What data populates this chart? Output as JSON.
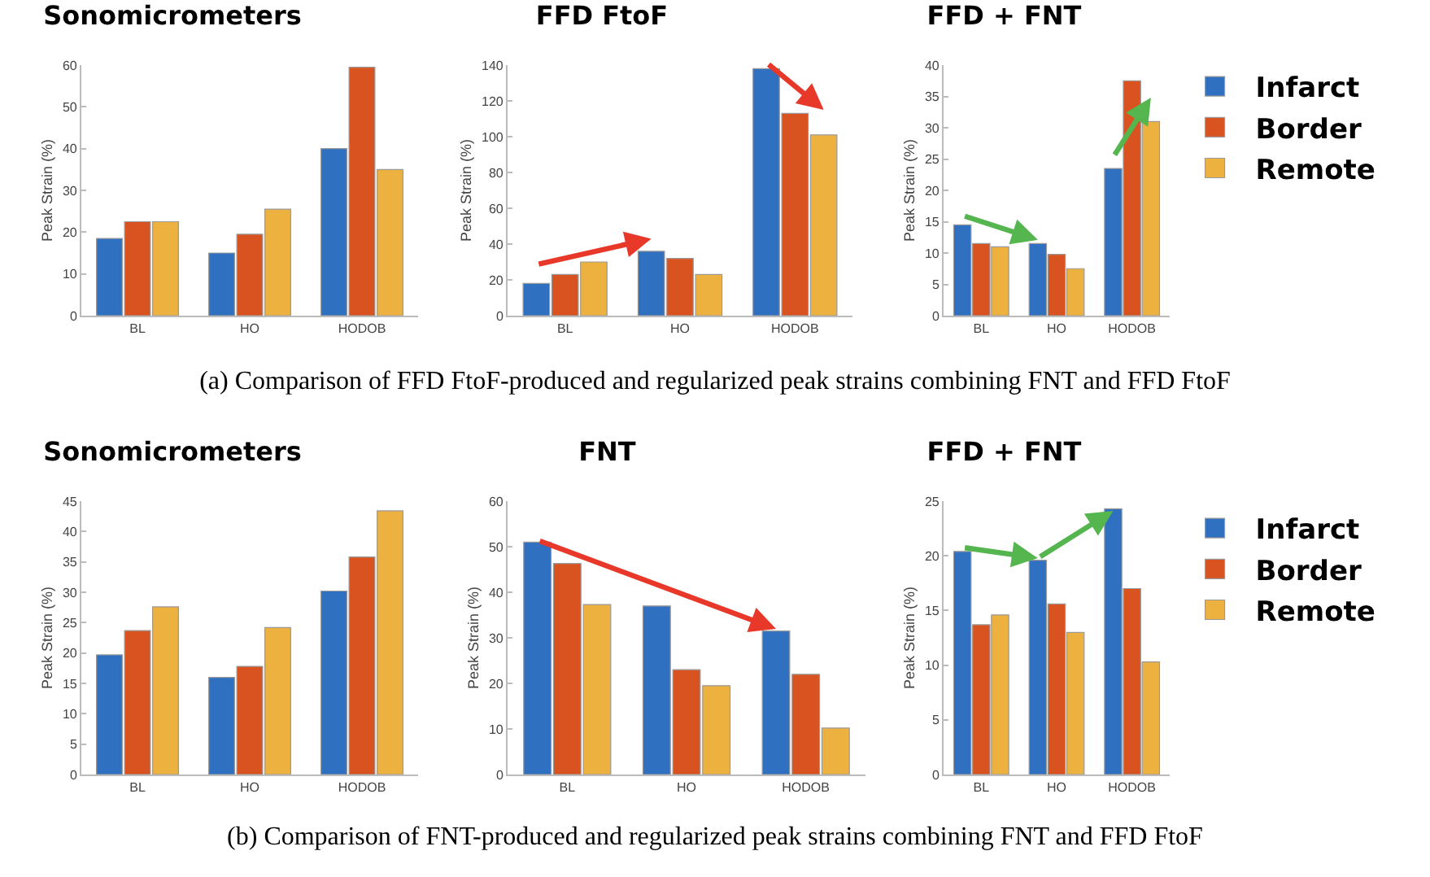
{
  "chart_data": [
    {
      "type": "bar",
      "title": "Sonomicrometers",
      "ylabel": "Peak Strain (%)",
      "categories": [
        "BL",
        "HO",
        "HODOB"
      ],
      "ylim": [
        0,
        60
      ],
      "yticks": [
        0,
        10,
        20,
        30,
        40,
        50,
        60
      ],
      "grid": false,
      "legend": false,
      "series": [
        {
          "color": "#3070c0",
          "values": [
            18.5,
            15,
            40
          ]
        },
        {
          "color": "#d95320",
          "values": [
            22.5,
            19.5,
            59.5
          ]
        },
        {
          "color": "#edb140",
          "values": [
            22.5,
            25.5,
            35
          ]
        }
      ],
      "annotations": [
        "(a) Comparison of FFD FtoF-produced and regularized peak strains combining FNT and FFD FtoF"
      ]
    },
    {
      "type": "bar",
      "title": "FFD FtoF",
      "ylabel": "Peak Strain (%)",
      "categories": [
        "BL",
        "HO",
        "HODOB"
      ],
      "ylim": [
        0,
        140
      ],
      "yticks": [
        0,
        20,
        40,
        60,
        80,
        100,
        120,
        140
      ],
      "grid": false,
      "legend": false,
      "series": [
        {
          "color": "#3070c0",
          "values": [
            18,
            36,
            138
          ]
        },
        {
          "color": "#d95320",
          "values": [
            23,
            32,
            113
          ]
        },
        {
          "color": "#edb140",
          "values": [
            30,
            23,
            101
          ]
        }
      ]
    },
    {
      "type": "bar",
      "title": "FFD + FNT",
      "ylabel": "Peak Strain (%)",
      "categories": [
        "BL",
        "HO",
        "HODOB"
      ],
      "ylim": [
        0,
        40
      ],
      "yticks": [
        0,
        5,
        10,
        15,
        20,
        25,
        30,
        35,
        40
      ],
      "grid": false,
      "legend": "right",
      "series": [
        {
          "name": "Infarct",
          "color": "#3070c0",
          "values": [
            14.5,
            11.5,
            23.5
          ]
        },
        {
          "name": "Border",
          "color": "#d95320",
          "values": [
            11.5,
            9.8,
            37.5
          ]
        },
        {
          "name": "Remote",
          "color": "#edb140",
          "values": [
            11,
            7.5,
            31
          ]
        }
      ]
    },
    {
      "type": "bar",
      "title": "Sonomicrometers",
      "ylabel": "Peak Strain (%)",
      "categories": [
        "BL",
        "HO",
        "HODOB"
      ],
      "ylim": [
        0,
        45
      ],
      "yticks": [
        0,
        5,
        10,
        15,
        20,
        25,
        30,
        35,
        40,
        45
      ],
      "grid": false,
      "legend": false,
      "series": [
        {
          "color": "#3070c0",
          "values": [
            19.7,
            16,
            30.2
          ]
        },
        {
          "color": "#d95320",
          "values": [
            23.7,
            17.8,
            35.8
          ]
        },
        {
          "color": "#edb140",
          "values": [
            27.6,
            24.2,
            43.4
          ]
        }
      ],
      "annotations": [
        "(b) Comparison of FNT-produced and regularized peak strains combining FNT and FFD FtoF"
      ]
    },
    {
      "type": "bar",
      "title": "FNT",
      "ylabel": "Peak Strain (%)",
      "categories": [
        "BL",
        "HO",
        "HODOB"
      ],
      "ylim": [
        0,
        60
      ],
      "yticks": [
        0,
        10,
        20,
        30,
        40,
        50,
        60
      ],
      "grid": false,
      "legend": false,
      "series": [
        {
          "color": "#3070c0",
          "values": [
            51,
            37,
            31.5
          ]
        },
        {
          "color": "#d95320",
          "values": [
            46.3,
            23,
            22
          ]
        },
        {
          "color": "#edb140",
          "values": [
            37.3,
            19.5,
            10.2
          ]
        }
      ]
    },
    {
      "type": "bar",
      "title": "FFD + FNT",
      "ylabel": "Peak Strain (%)",
      "categories": [
        "BL",
        "HO",
        "HODOB"
      ],
      "ylim": [
        0,
        25
      ],
      "yticks": [
        0,
        5,
        10,
        15,
        20,
        25
      ],
      "grid": false,
      "legend": "right",
      "series": [
        {
          "name": "Infarct",
          "color": "#3070c0",
          "values": [
            20.4,
            19.6,
            24.3
          ]
        },
        {
          "name": "Border",
          "color": "#d95320",
          "values": [
            13.7,
            15.6,
            17
          ]
        },
        {
          "name": "Remote",
          "color": "#edb140",
          "values": [
            14.6,
            13,
            10.3
          ]
        }
      ]
    }
  ]
}
